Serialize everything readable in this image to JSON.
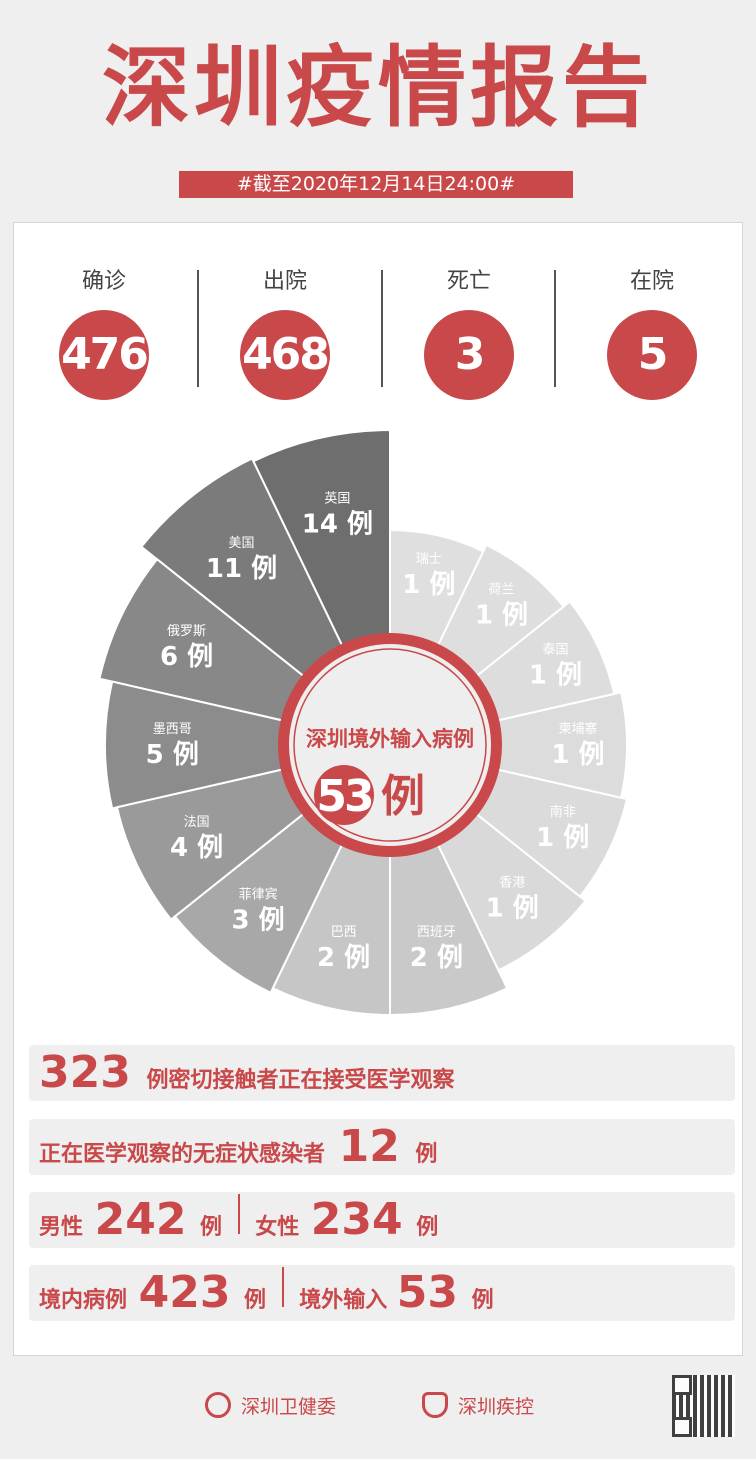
{
  "header": {
    "title": "深圳疫情报告",
    "date": "#截至2020年12月14日24:00#"
  },
  "stats": [
    {
      "label": "确诊",
      "value": "476"
    },
    {
      "label": "出院",
      "value": "468"
    },
    {
      "label": "死亡",
      "value": "3"
    },
    {
      "label": "在院",
      "value": "5"
    }
  ],
  "chart_data": {
    "type": "pie",
    "center_title": "深圳境外输入病例",
    "center_value": "53",
    "unit": "例",
    "categories": [
      "英国",
      "美国",
      "俄罗斯",
      "墨西哥",
      "法国",
      "菲律宾",
      "巴西",
      "西班牙",
      "香港",
      "南非",
      "柬埔寨",
      "泰国",
      "荷兰",
      "瑞士"
    ],
    "values": [
      14,
      11,
      6,
      5,
      4,
      3,
      2,
      2,
      1,
      1,
      1,
      1,
      1,
      1
    ],
    "colors": [
      "#6e6e6e",
      "#7b7b7b",
      "#888888",
      "#8c8c8c",
      "#9a9a9a",
      "#a8a8a8",
      "#c6c6c6",
      "#c9c9c9",
      "#d9d9d9",
      "#dbdbdb",
      "#dcdcdc",
      "#dddddd",
      "#dedede",
      "#dfdfdf"
    ],
    "accent": "#c9484a"
  },
  "rows": {
    "contacts": {
      "value": "323",
      "text": "例密切接触者正在接受医学观察"
    },
    "asymptomatic": {
      "text": "正在医学观察的无症状感染者",
      "value": "12",
      "unit": "例"
    },
    "gender": {
      "male_label": "男性",
      "male": "242",
      "female_label": "女性",
      "female": "234",
      "unit": "例"
    },
    "origin": {
      "local_label": "境内病例",
      "local": "423",
      "import_label": "境外输入",
      "import": "53",
      "unit": "例"
    }
  },
  "footer": {
    "org1": "深圳卫健委",
    "org2": "深圳疾控"
  }
}
